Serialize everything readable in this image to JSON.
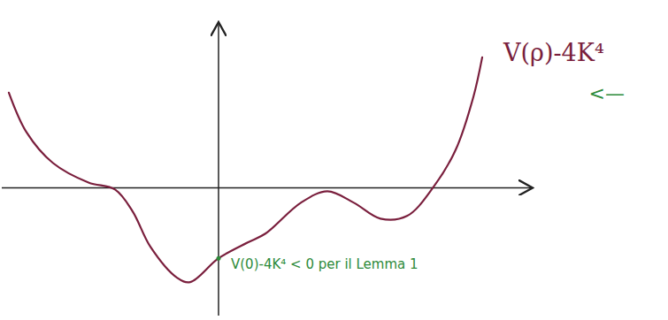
{
  "chart_data": {
    "type": "line",
    "x": [
      -4.74,
      -4.34,
      -3.74,
      -2.94,
      -2.34,
      -1.94,
      -1.54,
      -0.94,
      -0.64,
      0,
      0.66,
      1.06,
      1.86,
      2.46,
      3.06,
      3.66,
      4.26,
      4.86,
      5.36,
      5.76,
      5.96
    ],
    "series": [
      {
        "name": "V(ρ)-4K⁴",
        "color": "#7a1f3d",
        "line_style": "solid",
        "values": [
          2.16,
          1.26,
          0.56,
          0.12,
          -0.04,
          -0.54,
          -1.34,
          -2.04,
          -2.14,
          -1.6,
          -1.24,
          -1.04,
          -0.34,
          -0.08,
          -0.34,
          -0.7,
          -0.64,
          0.02,
          0.86,
          2.06,
          2.96
        ]
      }
    ],
    "annotations": [
      {
        "text": "<—",
        "color": "#2e8b3a"
      },
      {
        "text": "V(0)-4K⁴ < 0 per il Lemma 1",
        "color": "#2e8b3a",
        "x": 0,
        "y": -1.6
      }
    ],
    "xlim": [
      -4.9,
      7.1
    ],
    "ylim": [
      -2.9,
      3.76
    ],
    "xticks": [],
    "yticks": [],
    "tick_labels": false,
    "grid": false
  }
}
